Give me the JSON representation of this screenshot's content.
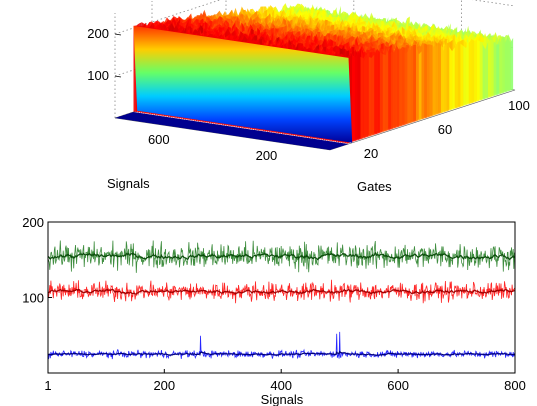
{
  "chart_data": [
    {
      "type": "surface",
      "title": "",
      "xlabel": "Signals",
      "ylabel": "Gates",
      "zlabel": "",
      "x_ticks": [
        "600",
        "200"
      ],
      "y_ticks": [
        "20",
        "60",
        "100"
      ],
      "z_ticks": [
        "100",
        "200"
      ],
      "xlim": [
        1,
        800
      ],
      "ylim": [
        0,
        100
      ],
      "zlim": [
        0,
        250
      ],
      "colormap": "jet",
      "grid": true,
      "surface_summary": {
        "flat_floor_until_gate": 10,
        "plateau_levels_by_gate": [
          {
            "gate": 10,
            "value": 205
          },
          {
            "gate": 40,
            "value": 180
          },
          {
            "gate": 70,
            "value": 150
          },
          {
            "gate": 100,
            "value": 120
          }
        ]
      }
    },
    {
      "type": "line",
      "title": "",
      "xlabel": "Signals",
      "ylabel": "",
      "xlim": [
        1,
        800
      ],
      "ylim": [
        0,
        200
      ],
      "x_ticks": [
        "1",
        "200",
        "400",
        "600",
        "800"
      ],
      "y_ticks": [
        "100",
        "200"
      ],
      "grid": false,
      "legend": "none",
      "series": [
        {
          "color": "#1f7a1f",
          "mean": 155,
          "noise": 25
        },
        {
          "color": "#ff0000",
          "mean": 108,
          "noise": 18
        },
        {
          "color": "#0000ff",
          "mean": 25,
          "noise": 7
        }
      ]
    }
  ]
}
